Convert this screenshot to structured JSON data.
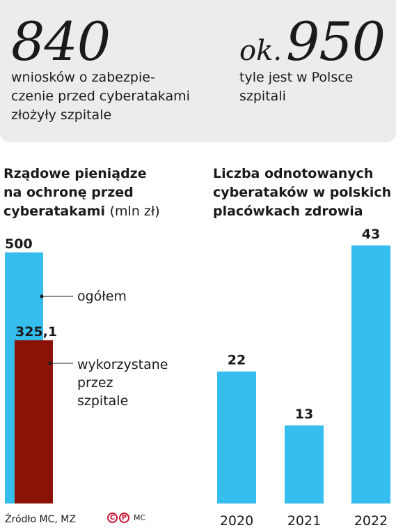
{
  "stats": {
    "left": {
      "number": "840",
      "description_lines": [
        "wniosków o zabezpie-",
        "czenie przed cyberatakami",
        "złożyły szpitale"
      ]
    },
    "right": {
      "prefix": "ok.",
      "number": "950",
      "description_lines": [
        "tyle jest w Polsce",
        "szpitali"
      ]
    }
  },
  "chart_data": [
    {
      "type": "bar",
      "title_lines": [
        "Rządowe pieniądze",
        "na ochronę przed",
        "cyberatakami"
      ],
      "title_unit": "(mln zł)",
      "series": [
        {
          "name": "ogółem",
          "value": 500,
          "value_label": "500",
          "color": "#35bdee"
        },
        {
          "name": "wykorzystane przez szpitale",
          "value": 325.1,
          "value_label": "325,1",
          "color": "#8b1206"
        }
      ],
      "callout_lines": {
        "ogolem": [
          "ogółem"
        ],
        "wykorzystane": [
          "wykorzystane",
          "przez",
          "szpitale"
        ]
      },
      "ylim": [
        0,
        500
      ]
    },
    {
      "type": "bar",
      "title_lines": [
        "Liczba odnotowanych",
        "cyberataków w polskich",
        "placówkach zdrowia"
      ],
      "categories": [
        "2020",
        "2021",
        "2022"
      ],
      "values": [
        22,
        13,
        43
      ],
      "value_labels": [
        "22",
        "13",
        "43"
      ],
      "color": "#35bdee",
      "ylim": [
        0,
        43
      ]
    }
  ],
  "footer": {
    "source": "Źródło MC, MZ",
    "logo_c": "C",
    "logo_p": "P",
    "author": "MC"
  },
  "colors": {
    "blue": "#35bdee",
    "dark_red": "#8b1206",
    "panel_bg": "#ececec",
    "logo_red": "#c8102e"
  }
}
